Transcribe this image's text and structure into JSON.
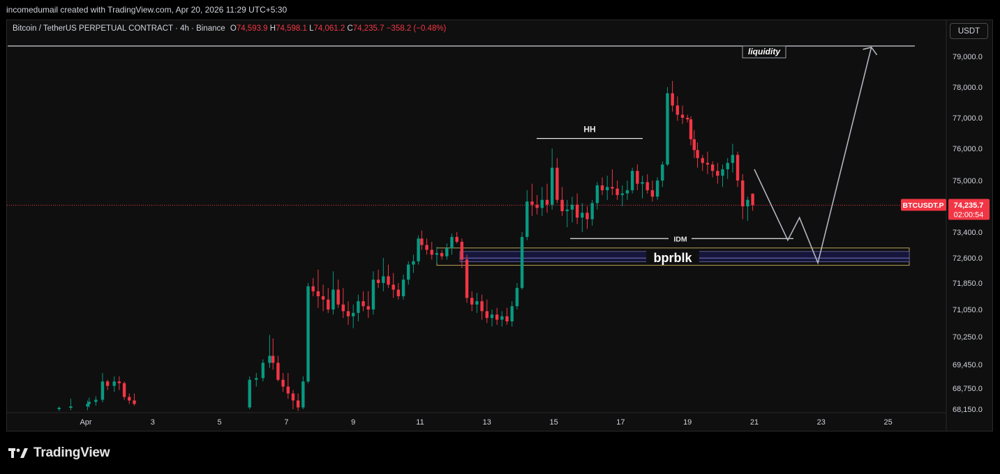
{
  "header": {
    "credit": "incomedumail created with TradingView.com, Apr 20, 2026 11:29 UTC+5:30"
  },
  "legend": {
    "symbol": "Bitcoin / TetherUS PERPETUAL CONTRACT · 4h · Binance",
    "open_label": "O",
    "open": "74,593.9",
    "high_label": "H",
    "high": "74,598.1",
    "low_label": "L",
    "low": "74,061.2",
    "close_label": "C",
    "close": "74,235.7",
    "change": "−358.2 (−0.48%)"
  },
  "toolbar": {
    "currency": "USDT"
  },
  "price_badge": {
    "symbol": "BTCUSDT.P",
    "price": "74,235.7",
    "countdown": "02:00:54"
  },
  "footer": {
    "brand": "TradingView"
  },
  "colors": {
    "up": "#089981",
    "down": "#f23645",
    "background": "#0f0f0f",
    "text": "#d1d4dc",
    "zone_border": "#b8a15a",
    "zone_fill": "#16163a"
  },
  "chart_data": {
    "type": "candlestick",
    "interval": "4h",
    "y_ticks": [
      "79,000.0",
      "78,000.0",
      "77,000.0",
      "76,000.0",
      "75,000.0",
      "73,400.0",
      "72,600.0",
      "71,850.0",
      "71,050.0",
      "70,250.0",
      "69,450.0",
      "68,750.0",
      "68,150.0"
    ],
    "x_ticks": [
      {
        "label": "Apr",
        "day": 1
      },
      {
        "label": "3",
        "day": 3
      },
      {
        "label": "5",
        "day": 5
      },
      {
        "label": "7",
        "day": 7
      },
      {
        "label": "9",
        "day": 9
      },
      {
        "label": "11",
        "day": 11
      },
      {
        "label": "13",
        "day": 13
      },
      {
        "label": "15",
        "day": 15
      },
      {
        "label": "17",
        "day": 17
      },
      {
        "label": "19",
        "day": 19
      },
      {
        "label": "21",
        "day": 21
      },
      {
        "label": "23",
        "day": 23
      },
      {
        "label": "25",
        "day": 25
      }
    ],
    "last_price": 74235.7,
    "candles": [
      [
        0.2,
        68150,
        68230,
        68100,
        68190
      ],
      [
        0.55,
        68190,
        68450,
        68120,
        68230
      ],
      [
        1.05,
        68230,
        68400,
        68120,
        68300
      ],
      [
        1.1,
        68300,
        68480,
        68200,
        68360
      ],
      [
        1.3,
        68360,
        68520,
        68250,
        68420
      ],
      [
        1.5,
        68420,
        69200,
        68350,
        68950
      ],
      [
        1.65,
        68950,
        69000,
        68700,
        68820
      ],
      [
        1.85,
        68820,
        69100,
        68650,
        68950
      ],
      [
        2.0,
        68950,
        69100,
        68700,
        68900
      ],
      [
        2.15,
        68900,
        68950,
        68420,
        68500
      ],
      [
        2.3,
        68500,
        68600,
        68300,
        68400
      ],
      [
        2.45,
        68400,
        68600,
        68250,
        68300
      ],
      [
        5.9,
        68200,
        69100,
        68150,
        69000
      ],
      [
        6.1,
        69000,
        69200,
        68800,
        69050
      ],
      [
        6.3,
        69050,
        69600,
        68950,
        69500
      ],
      [
        6.5,
        69500,
        70300,
        69350,
        69700
      ],
      [
        6.6,
        69700,
        70200,
        69300,
        69500
      ],
      [
        6.75,
        69500,
        69700,
        68950,
        69000
      ],
      [
        6.9,
        69000,
        69200,
        68650,
        68800
      ],
      [
        7.05,
        68800,
        69200,
        68450,
        68600
      ],
      [
        7.2,
        68600,
        68700,
        68150,
        68400
      ],
      [
        7.35,
        68400,
        68600,
        68100,
        68200
      ],
      [
        7.5,
        68200,
        69100,
        68150,
        68950
      ],
      [
        7.65,
        68950,
        71850,
        68900,
        71750
      ],
      [
        7.8,
        71750,
        72000,
        71450,
        71600
      ],
      [
        7.95,
        71600,
        72250,
        71100,
        71450
      ],
      [
        8.1,
        71450,
        71800,
        71000,
        71350
      ],
      [
        8.25,
        71350,
        71700,
        70950,
        71050
      ],
      [
        8.4,
        71050,
        72200,
        70900,
        71650
      ],
      [
        8.55,
        71650,
        71950,
        71100,
        71200
      ],
      [
        8.7,
        71200,
        71700,
        70800,
        71000
      ],
      [
        8.85,
        71000,
        71300,
        70600,
        70850
      ],
      [
        9.0,
        70850,
        71200,
        70500,
        70950
      ],
      [
        9.15,
        70950,
        71500,
        70700,
        71300
      ],
      [
        9.3,
        71300,
        71600,
        71000,
        71150
      ],
      [
        9.45,
        71150,
        71600,
        70800,
        71050
      ],
      [
        9.6,
        71050,
        72200,
        70900,
        71950
      ],
      [
        9.75,
        71950,
        72250,
        71700,
        71850
      ],
      [
        9.9,
        71850,
        72600,
        71600,
        72050
      ],
      [
        10.05,
        72050,
        72400,
        71700,
        71800
      ],
      [
        10.2,
        71800,
        72150,
        71400,
        71650
      ],
      [
        10.35,
        71650,
        71850,
        71350,
        71450
      ],
      [
        10.5,
        71450,
        72100,
        71350,
        71950
      ],
      [
        10.65,
        71950,
        72500,
        71800,
        72400
      ],
      [
        10.8,
        72400,
        72700,
        72150,
        72500
      ],
      [
        10.95,
        72500,
        73300,
        72400,
        73200
      ],
      [
        11.05,
        73200,
        73450,
        72850,
        73000
      ],
      [
        11.2,
        73000,
        73200,
        72700,
        72850
      ],
      [
        11.35,
        72850,
        73100,
        72550,
        72700
      ],
      [
        11.5,
        72700,
        72950,
        72450,
        72750
      ],
      [
        11.65,
        72750,
        72850,
        72550,
        72650
      ],
      [
        11.8,
        72650,
        73050,
        72550,
        72900
      ],
      [
        11.95,
        72900,
        73350,
        72700,
        73250
      ],
      [
        12.1,
        73250,
        73400,
        73050,
        73100
      ],
      [
        12.25,
        73100,
        73200,
        72300,
        72550
      ],
      [
        12.4,
        72550,
        72700,
        71250,
        71400
      ],
      [
        12.55,
        71400,
        71600,
        71000,
        71200
      ],
      [
        12.7,
        71200,
        71550,
        70950,
        71300
      ],
      [
        12.85,
        71300,
        71500,
        70750,
        71000
      ],
      [
        13.0,
        71000,
        71350,
        70650,
        70800
      ],
      [
        13.15,
        70800,
        71050,
        70550,
        70900
      ],
      [
        13.3,
        70900,
        71100,
        70600,
        70750
      ],
      [
        13.45,
        70750,
        71000,
        70550,
        70850
      ],
      [
        13.6,
        70850,
        71100,
        70600,
        70700
      ],
      [
        13.75,
        70700,
        71300,
        70550,
        71150
      ],
      [
        13.9,
        71150,
        71850,
        71050,
        71700
      ],
      [
        14.05,
        71700,
        73400,
        71650,
        73250
      ],
      [
        14.2,
        73250,
        74700,
        73150,
        74350
      ],
      [
        14.35,
        74350,
        74900,
        73900,
        74250
      ],
      [
        14.5,
        74250,
        74550,
        73950,
        74150
      ],
      [
        14.65,
        74150,
        74800,
        73900,
        74400
      ],
      [
        14.8,
        74400,
        74900,
        74000,
        74250
      ],
      [
        14.95,
        74250,
        76000,
        74100,
        75400
      ],
      [
        15.1,
        75400,
        75700,
        74300,
        74400
      ],
      [
        15.25,
        74400,
        74800,
        73900,
        74050
      ],
      [
        15.4,
        74050,
        74400,
        73550,
        74100
      ],
      [
        15.55,
        74100,
        74500,
        73700,
        74250
      ],
      [
        15.7,
        74250,
        74600,
        73650,
        73850
      ],
      [
        15.85,
        73850,
        74300,
        73400,
        74000
      ],
      [
        16.0,
        74000,
        74200,
        73500,
        73800
      ],
      [
        16.15,
        73800,
        74400,
        73600,
        74300
      ],
      [
        16.3,
        74300,
        74950,
        74100,
        74850
      ],
      [
        16.45,
        74850,
        75100,
        74550,
        74700
      ],
      [
        16.6,
        74700,
        75150,
        74400,
        74800
      ],
      [
        16.75,
        74800,
        75350,
        74550,
        74750
      ],
      [
        16.9,
        74750,
        75000,
        74400,
        74550
      ],
      [
        17.05,
        74550,
        74850,
        74200,
        74600
      ],
      [
        17.2,
        74600,
        75000,
        74400,
        74700
      ],
      [
        17.35,
        74700,
        75400,
        74600,
        75300
      ],
      [
        17.5,
        75300,
        75500,
        74700,
        74900
      ],
      [
        17.65,
        74900,
        75150,
        74450,
        74950
      ],
      [
        17.8,
        74950,
        75200,
        74600,
        74700
      ],
      [
        17.95,
        74700,
        75000,
        74350,
        74500
      ],
      [
        18.1,
        74500,
        75100,
        74400,
        75000
      ],
      [
        18.25,
        75000,
        75600,
        74800,
        75500
      ],
      [
        18.4,
        75500,
        78000,
        75450,
        77800
      ],
      [
        18.55,
        77800,
        78200,
        77200,
        77400
      ],
      [
        18.7,
        77400,
        77700,
        76900,
        77100
      ],
      [
        18.85,
        77100,
        77400,
        76800,
        77000
      ],
      [
        19.0,
        77000,
        77100,
        76850,
        76950
      ],
      [
        19.1,
        76950,
        77050,
        76100,
        76300
      ],
      [
        19.2,
        76300,
        76600,
        75700,
        75950
      ],
      [
        19.3,
        75950,
        76200,
        75400,
        75700
      ],
      [
        19.45,
        75700,
        75800,
        75300,
        75550
      ],
      [
        19.6,
        75550,
        75900,
        75200,
        75500
      ],
      [
        19.75,
        75500,
        75600,
        75100,
        75300
      ],
      [
        19.9,
        75300,
        75550,
        74900,
        75150
      ],
      [
        20.05,
        75150,
        75500,
        74800,
        75350
      ],
      [
        20.2,
        75350,
        75700,
        75050,
        75550
      ],
      [
        20.35,
        75550,
        76150,
        75250,
        75800
      ],
      [
        20.5,
        75800,
        75900,
        74800,
        75000
      ],
      [
        20.65,
        75000,
        75200,
        73800,
        74200
      ],
      [
        20.8,
        74200,
        74500,
        73750,
        74400
      ],
      [
        20.95,
        74593.9,
        74598.1,
        74061.2,
        74235.7
      ]
    ],
    "annotations": {
      "horizontal_lines": [
        {
          "label": "liquidity",
          "price": 79350
        },
        {
          "label": "HH",
          "price": 76350
        },
        {
          "label": "IDM",
          "price": 73200
        }
      ],
      "zones": [
        {
          "label": "bprblk",
          "top": 72800,
          "bottom": 72400
        }
      ],
      "projection_path": [
        [
          21.0,
          75350
        ],
        [
          22.0,
          73150
        ],
        [
          22.35,
          73850
        ],
        [
          22.9,
          72450
        ],
        [
          24.5,
          79300
        ]
      ],
      "projection_arrowhead": true
    }
  }
}
